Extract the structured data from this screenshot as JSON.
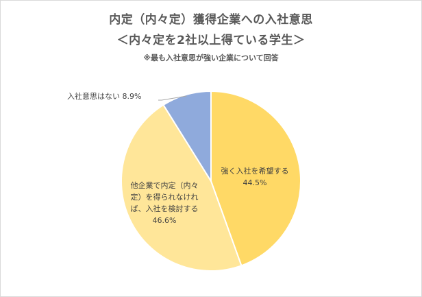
{
  "chart_data": {
    "type": "pie",
    "title": "内定（内々定）獲得企業への入社意思",
    "subtitle": "＜内々定を2社以上得ている学生＞",
    "note": "※最も入社意思が強い企業について回答",
    "slices": [
      {
        "label": "強く入社を希望する",
        "value": 44.5,
        "value_label": "44.5%",
        "color": "#ffd966"
      },
      {
        "label": "他企業で内定（内々定）を得られなければ、入社を検討する",
        "label_lines": [
          "他企業で内定（内々",
          "定）を得られなけれ",
          "ば、入社を検討する"
        ],
        "value": 46.6,
        "value_label": "46.6%",
        "color": "#ffe699"
      },
      {
        "label": "入社意思はない",
        "value": 8.9,
        "value_label": "8.9%",
        "color": "#8faadc"
      }
    ],
    "start_angle_deg": 0,
    "direction": "clockwise"
  }
}
